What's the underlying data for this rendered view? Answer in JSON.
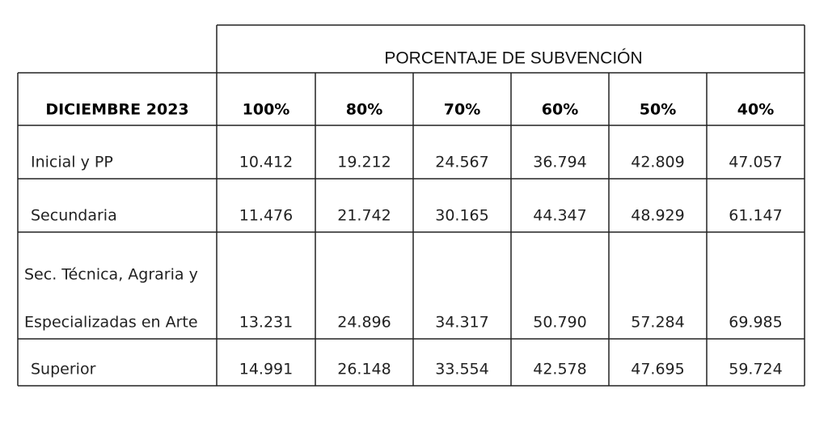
{
  "header": {
    "title": "PORCENTAJE DE SUBVENCIÓN"
  },
  "table": {
    "columns": [
      "DICIEMBRE 2023",
      "100%",
      "80%",
      "70%",
      "60%",
      "50%",
      "40%"
    ],
    "rows": [
      {
        "label": [
          "Inicial y PP"
        ],
        "values": [
          "10.412",
          "19.212",
          "24.567",
          "36.794",
          "42.809",
          "47.057"
        ]
      },
      {
        "label": [
          "Secundaria"
        ],
        "values": [
          "11.476",
          "21.742",
          "30.165",
          "44.347",
          "48.929",
          "61.147"
        ]
      },
      {
        "label": [
          "Sec. Técnica, Agraria y",
          "Especializadas en Arte"
        ],
        "values": [
          "13.231",
          "24.896",
          "34.317",
          "50.790",
          "57.284",
          "69.985"
        ]
      },
      {
        "label": [
          "Superior"
        ],
        "values": [
          "14.991",
          "26.148",
          "33.554",
          "42.578",
          "47.695",
          "59.724"
        ]
      }
    ]
  }
}
